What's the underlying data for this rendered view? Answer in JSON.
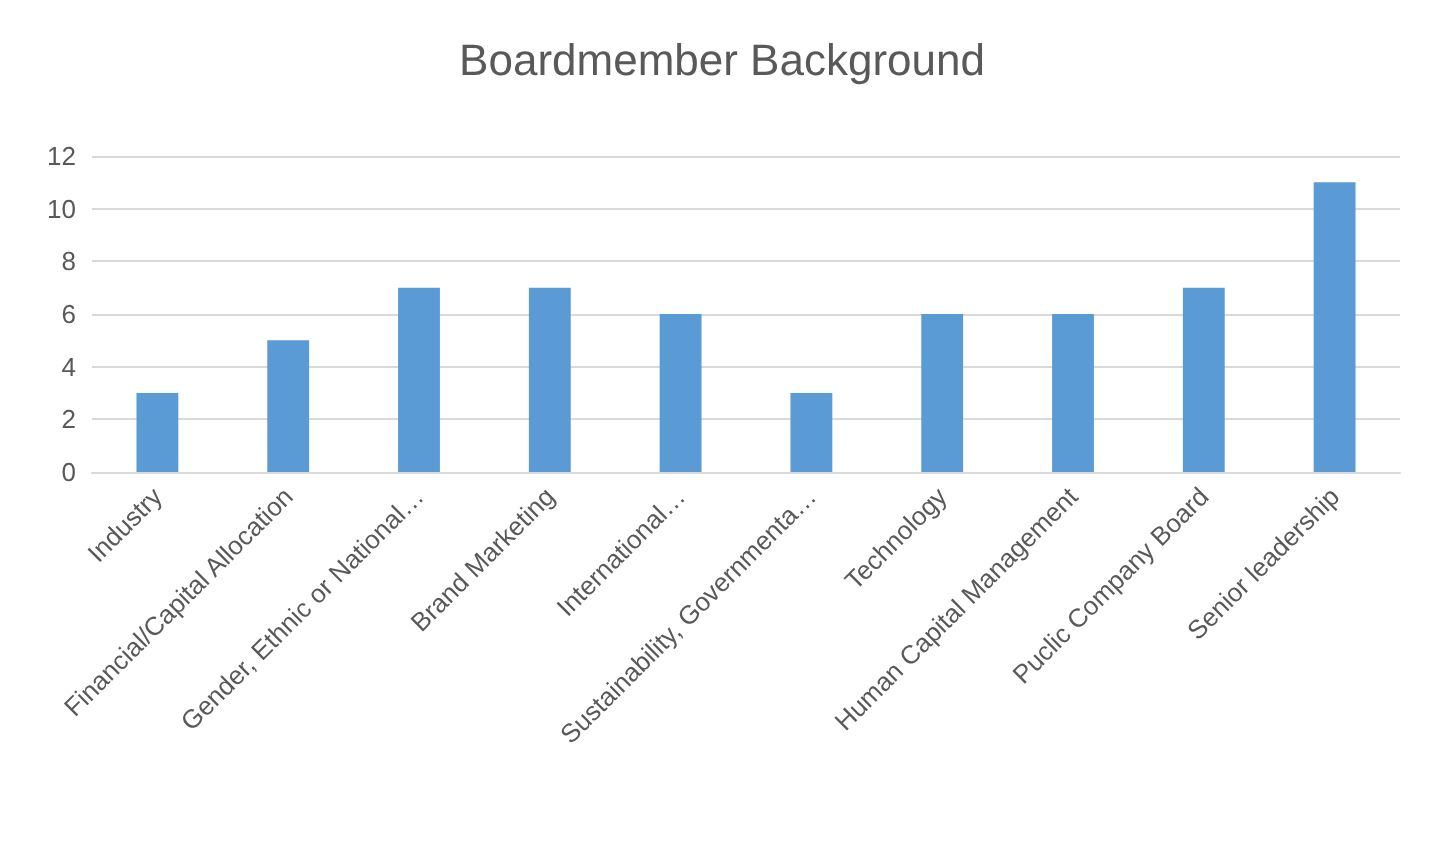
{
  "chart_data": {
    "type": "bar",
    "title": "Boardmember Background",
    "categories": [
      "Industry",
      "Financial/Capital Allocation",
      "Gender, Ethnic or National…",
      "Brand Marketing",
      "International…",
      "Sustainability, Governmenta…",
      "Technology",
      "Human Capital Management",
      "Puclic Company Board",
      "Senior leadership"
    ],
    "values": [
      3,
      5,
      7,
      7,
      6,
      3,
      6,
      6,
      7,
      11
    ],
    "color": "#5b9bd5",
    "ylim": [
      0,
      12
    ],
    "yticks": [
      0,
      2,
      4,
      6,
      8,
      10,
      12
    ],
    "grid": "y"
  }
}
